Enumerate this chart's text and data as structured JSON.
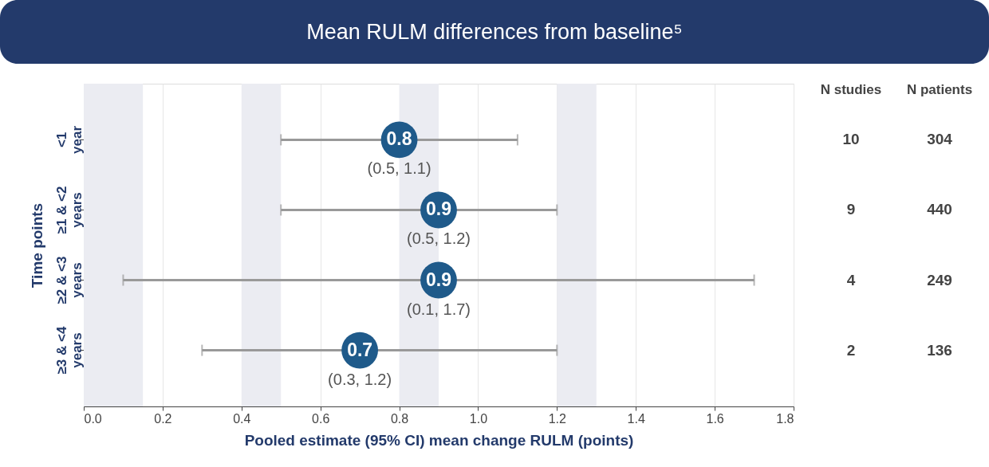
{
  "chart_data": {
    "type": "scatter",
    "orientation": "horizontal",
    "title": "Mean RULM differences from baseline⁵",
    "xlabel": "Pooled estimate (95% CI) mean change RULM (points)",
    "ylabel": "Time points",
    "categories": [
      "<1 year",
      "≥1 & <2 years",
      "≥2 & <3 years",
      "≥3 & <4 years"
    ],
    "series": [
      {
        "color": "#1f5a8a",
        "values": [
          0.8,
          0.9,
          0.9,
          0.7
        ],
        "errors": [
          [
            0.5,
            1.1
          ],
          [
            0.5,
            1.2
          ],
          [
            0.1,
            1.7
          ],
          [
            0.3,
            1.2
          ]
        ]
      }
    ],
    "data_labels": true,
    "marker": "circle",
    "grid": "x",
    "xlim": [
      0,
      1.8
    ],
    "xticks": [
      {
        "value": 0,
        "label": "0.0"
      },
      0.2,
      0.4,
      0.6,
      0.8,
      {
        "value": 1,
        "label": "1.0"
      },
      1.2,
      1.4,
      1.6,
      1.8
    ],
    "bands": [
      {
        "axis": "x",
        "from": 0,
        "to": 0.15,
        "color": "#ebecf2"
      },
      {
        "axis": "x",
        "from": 0.4,
        "to": 0.5,
        "color": "#ebecf2"
      },
      {
        "axis": "x",
        "from": 0.8,
        "to": 0.9,
        "color": "#ebecf2"
      },
      {
        "axis": "x",
        "from": 1.2,
        "to": 1.3,
        "color": "#ebecf2"
      }
    ],
    "annotations": [
      {
        "text": "(0.5, 1.1)",
        "x": 0.8,
        "y": "<1 year"
      },
      {
        "text": "(0.5, 1.2)",
        "x": 0.9,
        "y": "≥1 & <2 years"
      },
      {
        "text": "(0.1, 1.7)",
        "x": 0.9,
        "y": "≥2 & <3 years"
      },
      {
        "text": "(0.3, 1.2)",
        "x": 0.7,
        "y": "≥3 & <4 years"
      },
      "N studies",
      "N patients",
      "10",
      "304",
      "9",
      "440",
      "4",
      "249",
      "2",
      "136"
    ]
  }
}
